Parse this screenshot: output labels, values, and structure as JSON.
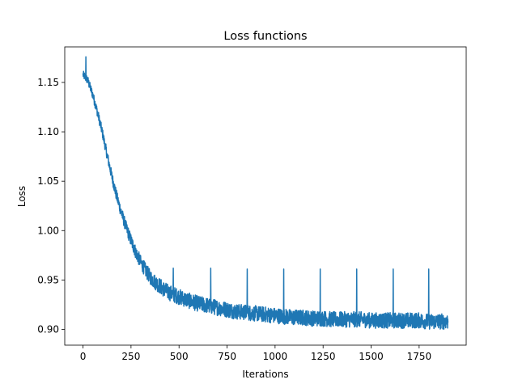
{
  "chart_data": {
    "type": "line",
    "title": "Loss functions",
    "xlabel": "Iterations",
    "ylabel": "Loss",
    "xlim": [
      -95,
      1995
    ],
    "ylim": [
      0.884,
      1.186
    ],
    "x_ticks": [
      0,
      250,
      500,
      750,
      1000,
      1250,
      1500,
      1750
    ],
    "x_tick_labels": [
      "0",
      "250",
      "500",
      "750",
      "1000",
      "1250",
      "1500",
      "1750"
    ],
    "y_ticks": [
      0.9,
      0.95,
      1.0,
      1.05,
      1.1,
      1.15
    ],
    "y_tick_labels": [
      "0.90",
      "0.95",
      "1.00",
      "1.05",
      "1.10",
      "1.15"
    ],
    "grid": false,
    "legend": "none",
    "series": [
      {
        "color": "#1f77b4",
        "x": [
          0,
          25,
          50,
          75,
          100,
          125,
          150,
          175,
          200,
          225,
          250,
          275,
          300,
          325,
          350,
          375,
          400,
          425,
          450,
          475,
          500,
          550,
          600,
          650,
          700,
          750,
          800,
          850,
          900,
          950,
          1000,
          1050,
          1100,
          1150,
          1200,
          1250,
          1300,
          1350,
          1400,
          1450,
          1500,
          1550,
          1600,
          1650,
          1700,
          1750,
          1800,
          1850,
          1900
        ],
        "values": [
          1.158,
          1.152,
          1.138,
          1.12,
          1.1,
          1.077,
          1.055,
          1.035,
          1.018,
          1.003,
          0.99,
          0.978,
          0.968,
          0.96,
          0.953,
          0.948,
          0.944,
          0.94,
          0.937,
          0.935,
          0.933,
          0.929,
          0.926,
          0.924,
          0.922,
          0.92,
          0.918,
          0.917,
          0.916,
          0.915,
          0.914,
          0.913,
          0.912,
          0.912,
          0.911,
          0.911,
          0.91,
          0.91,
          0.91,
          0.91,
          0.909,
          0.909,
          0.909,
          0.909,
          0.909,
          0.909,
          0.908,
          0.908,
          0.908
        ]
      }
    ],
    "spikes": [
      {
        "x": 15,
        "y": 1.176
      },
      {
        "x": 265,
        "y": 0.985
      },
      {
        "x": 470,
        "y": 0.962
      },
      {
        "x": 665,
        "y": 0.962
      },
      {
        "x": 855,
        "y": 0.961
      },
      {
        "x": 1045,
        "y": 0.961
      },
      {
        "x": 1235,
        "y": 0.961
      },
      {
        "x": 1425,
        "y": 0.961
      },
      {
        "x": 1615,
        "y": 0.961
      },
      {
        "x": 1800,
        "y": 0.961
      }
    ]
  }
}
